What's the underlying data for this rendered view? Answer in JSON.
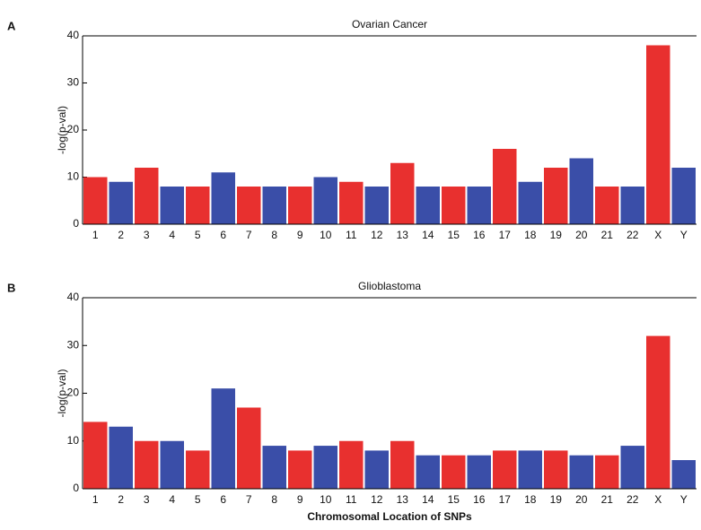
{
  "chart_data": [
    {
      "type": "manhattan",
      "panel_label": "A",
      "title": "Ovarian Cancer",
      "y_label": "-log(p-val)",
      "categories": [
        "1",
        "2",
        "3",
        "4",
        "5",
        "6",
        "7",
        "8",
        "9",
        "10",
        "11",
        "12",
        "13",
        "14",
        "15",
        "16",
        "17",
        "18",
        "19",
        "20",
        "21",
        "22",
        "X",
        "Y"
      ],
      "values": [
        10,
        9,
        12,
        8,
        8,
        11,
        8,
        8,
        8,
        10,
        9,
        8,
        13,
        8,
        8,
        8,
        16,
        9,
        12,
        14,
        8,
        8,
        38,
        12
      ],
      "colors": [
        "#e8302f",
        "#3a4ea8"
      ],
      "ylim": [
        0,
        40
      ],
      "yticks": [
        0,
        10,
        20,
        30,
        40
      ]
    },
    {
      "type": "manhattan",
      "panel_label": "B",
      "title": "Glioblastoma",
      "y_label": "-log(p-val)",
      "x_label": "Chromosomal Location of SNPs",
      "categories": [
        "1",
        "2",
        "3",
        "4",
        "5",
        "6",
        "7",
        "8",
        "9",
        "10",
        "11",
        "12",
        "13",
        "14",
        "15",
        "16",
        "17",
        "18",
        "19",
        "20",
        "21",
        "22",
        "X",
        "Y"
      ],
      "values": [
        14,
        13,
        10,
        10,
        8,
        21,
        17,
        9,
        8,
        9,
        10,
        8,
        10,
        7,
        7,
        7,
        8,
        8,
        8,
        7,
        7,
        9,
        32,
        6
      ],
      "colors": [
        "#e8302f",
        "#3a4ea8"
      ],
      "ylim": [
        0,
        40
      ],
      "yticks": [
        0,
        10,
        20,
        30,
        40
      ]
    }
  ]
}
